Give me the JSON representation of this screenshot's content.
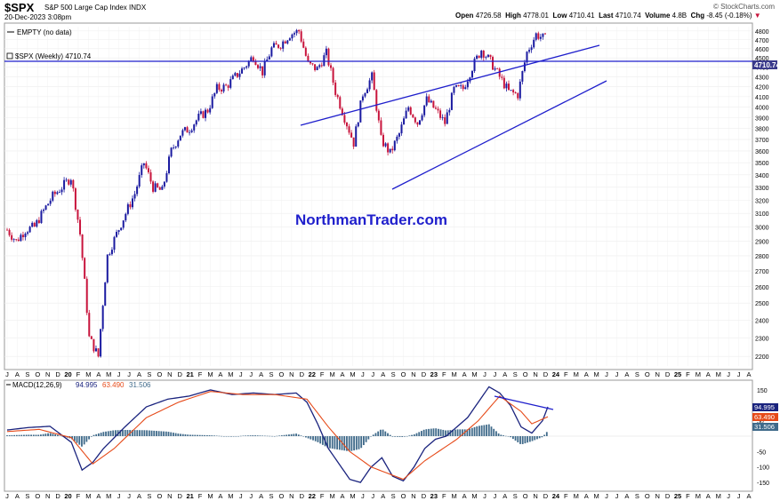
{
  "header": {
    "symbol": "$SPX",
    "name": "S&P 500 Large Cap Index",
    "exchange": "INDX",
    "date_time": "20-Dec-2023 3:08pm",
    "open_label": "Open",
    "open": "4726.58",
    "high_label": "High",
    "high": "4778.01",
    "low_label": "Low",
    "low": "4710.41",
    "last_label": "Last",
    "last": "4710.74",
    "volume_label": "Volume",
    "volume": "4.8B",
    "chg_label": "Chg",
    "chg": "-8.45 (-0.18%)",
    "logo": "© StockCharts.com"
  },
  "price_panel": {
    "legend_empty": "EMPTY (no data)",
    "legend_price": "$SPX (Weekly) 4710.74",
    "last_value_tag": "4710.74",
    "watermark": "NorthmanTrader.com"
  },
  "macd_panel": {
    "legend_label": "MACD(12,26,9)",
    "macd_value": "94.995",
    "signal_value": "63.490",
    "hist_value": "31.506"
  },
  "colors": {
    "up_candle": "#1a1aa0",
    "down_candle": "#c8143c",
    "trendline": "#1f1fcc",
    "macd_line": "#1a237e",
    "signal_line": "#e64a19",
    "histogram": "#3f6a8a",
    "value_tag": "#3a3a8c"
  },
  "chart_data": [
    {
      "type": "candlestick",
      "title": "$SPX (Weekly)",
      "ylim": [
        2150,
        4850
      ],
      "y_scale": "log",
      "y_ticks": [
        2200,
        2300,
        2400,
        2500,
        2600,
        2700,
        2800,
        2900,
        3000,
        3100,
        3200,
        3300,
        3400,
        3500,
        3600,
        3700,
        3800,
        3900,
        4000,
        4100,
        4200,
        4300,
        4400,
        4500,
        4600,
        4700,
        4800
      ],
      "x_tick_labels": [
        "J",
        "A",
        "S",
        "O",
        "N",
        "D",
        "20",
        "F",
        "M",
        "A",
        "M",
        "J",
        "J",
        "A",
        "S",
        "O",
        "N",
        "D",
        "21",
        "F",
        "M",
        "A",
        "M",
        "J",
        "J",
        "A",
        "S",
        "O",
        "N",
        "D",
        "22",
        "F",
        "M",
        "A",
        "M",
        "J",
        "J",
        "A",
        "S",
        "O",
        "N",
        "D",
        "23",
        "F",
        "M",
        "A",
        "M",
        "J",
        "J",
        "A",
        "S",
        "O",
        "N",
        "D",
        "24",
        "F",
        "M",
        "A",
        "M",
        "J",
        "J",
        "A",
        "S",
        "O",
        "N",
        "D",
        "25",
        "F",
        "M",
        "A",
        "M",
        "J",
        "J",
        "A"
      ],
      "price_path": [
        [
          "2019-07",
          2980
        ],
        [
          "2019-08",
          2900
        ],
        [
          "2019-09",
          2980
        ],
        [
          "2019-10",
          3000
        ],
        [
          "2019-11",
          3120
        ],
        [
          "2019-12",
          3230
        ],
        [
          "2020-01",
          3300
        ],
        [
          "2020-02",
          3380
        ],
        [
          "2020-02b",
          2950
        ],
        [
          "2020-03",
          2300
        ],
        [
          "2020-03b",
          2200
        ],
        [
          "2020-04",
          2800
        ],
        [
          "2020-05",
          2950
        ],
        [
          "2020-06",
          3100
        ],
        [
          "2020-07",
          3250
        ],
        [
          "2020-08",
          3500
        ],
        [
          "2020-09",
          3300
        ],
        [
          "2020-10",
          3270
        ],
        [
          "2020-11",
          3600
        ],
        [
          "2020-12",
          3750
        ],
        [
          "2021-01",
          3800
        ],
        [
          "2021-02",
          3900
        ],
        [
          "2021-03",
          3970
        ],
        [
          "2021-04",
          4180
        ],
        [
          "2021-05",
          4200
        ],
        [
          "2021-06",
          4300
        ],
        [
          "2021-07",
          4400
        ],
        [
          "2021-08",
          4520
        ],
        [
          "2021-09",
          4350
        ],
        [
          "2021-10",
          4600
        ],
        [
          "2021-11",
          4650
        ],
        [
          "2021-12",
          4760
        ],
        [
          "2022-01",
          4800
        ],
        [
          "2022-01b",
          4430
        ],
        [
          "2022-02",
          4380
        ],
        [
          "2022-03",
          4550
        ],
        [
          "2022-04",
          4150
        ],
        [
          "2022-05",
          3900
        ],
        [
          "2022-06",
          3670
        ],
        [
          "2022-07",
          4130
        ],
        [
          "2022-08",
          4300
        ],
        [
          "2022-09",
          3700
        ],
        [
          "2022-10",
          3580
        ],
        [
          "2022-10b",
          3750
        ],
        [
          "2022-11",
          4000
        ],
        [
          "2022-12",
          3850
        ],
        [
          "2023-01",
          4070
        ],
        [
          "2023-02",
          3970
        ],
        [
          "2023-03",
          3850
        ],
        [
          "2023-04",
          4170
        ],
        [
          "2023-05",
          4180
        ],
        [
          "2023-06",
          4400
        ],
        [
          "2023-07",
          4590
        ],
        [
          "2023-08",
          4460
        ],
        [
          "2023-09",
          4300
        ],
        [
          "2023-10",
          4150
        ],
        [
          "2023-10b",
          4120
        ],
        [
          "2023-11",
          4560
        ],
        [
          "2023-12",
          4760
        ],
        [
          "2023-12b",
          4710
        ]
      ],
      "annotations": [
        "upper rising trendline",
        "lower rising trendline",
        "horizontal line at 2022 high"
      ]
    },
    {
      "type": "line",
      "title": "MACD(12,26,9)",
      "ylim": [
        -170,
        170
      ],
      "y_ticks": [
        150,
        100,
        50,
        -50,
        -100,
        -150
      ],
      "series": [
        {
          "name": "MACD",
          "points": [
            [
              0,
              20
            ],
            [
              4,
              28
            ],
            [
              8,
              32
            ],
            [
              12,
              -20
            ],
            [
              14,
              -110
            ],
            [
              16,
              -85
            ],
            [
              18,
              -40
            ],
            [
              22,
              30
            ],
            [
              26,
              95
            ],
            [
              30,
              120
            ],
            [
              34,
              130
            ],
            [
              38,
              150
            ],
            [
              42,
              135
            ],
            [
              46,
              140
            ],
            [
              50,
              135
            ],
            [
              54,
              140
            ],
            [
              56,
              110
            ],
            [
              58,
              40
            ],
            [
              60,
              -40
            ],
            [
              62,
              -90
            ],
            [
              64,
              -140
            ],
            [
              66,
              -150
            ],
            [
              68,
              -100
            ],
            [
              70,
              -70
            ],
            [
              72,
              -130
            ],
            [
              74,
              -145
            ],
            [
              76,
              -100
            ],
            [
              78,
              -40
            ],
            [
              80,
              -10
            ],
            [
              82,
              0
            ],
            [
              84,
              30
            ],
            [
              86,
              60
            ],
            [
              88,
              110
            ],
            [
              90,
              160
            ],
            [
              92,
              140
            ],
            [
              94,
              100
            ],
            [
              96,
              30
            ],
            [
              98,
              10
            ],
            [
              100,
              50
            ],
            [
              101,
              95
            ]
          ]
        },
        {
          "name": "Signal",
          "points": [
            [
              0,
              15
            ],
            [
              6,
              22
            ],
            [
              12,
              -5
            ],
            [
              16,
              -90
            ],
            [
              20,
              -40
            ],
            [
              26,
              60
            ],
            [
              32,
              110
            ],
            [
              38,
              145
            ],
            [
              44,
              135
            ],
            [
              50,
              135
            ],
            [
              56,
              120
            ],
            [
              60,
              30
            ],
            [
              64,
              -50
            ],
            [
              68,
              -100
            ],
            [
              74,
              -140
            ],
            [
              78,
              -80
            ],
            [
              84,
              -10
            ],
            [
              88,
              50
            ],
            [
              92,
              130
            ],
            [
              96,
              80
            ],
            [
              98,
              40
            ],
            [
              101,
              63
            ]
          ]
        }
      ],
      "histogram_note": "MACD minus signal",
      "annotations": [
        "falling trendline across MACD highs"
      ]
    }
  ]
}
